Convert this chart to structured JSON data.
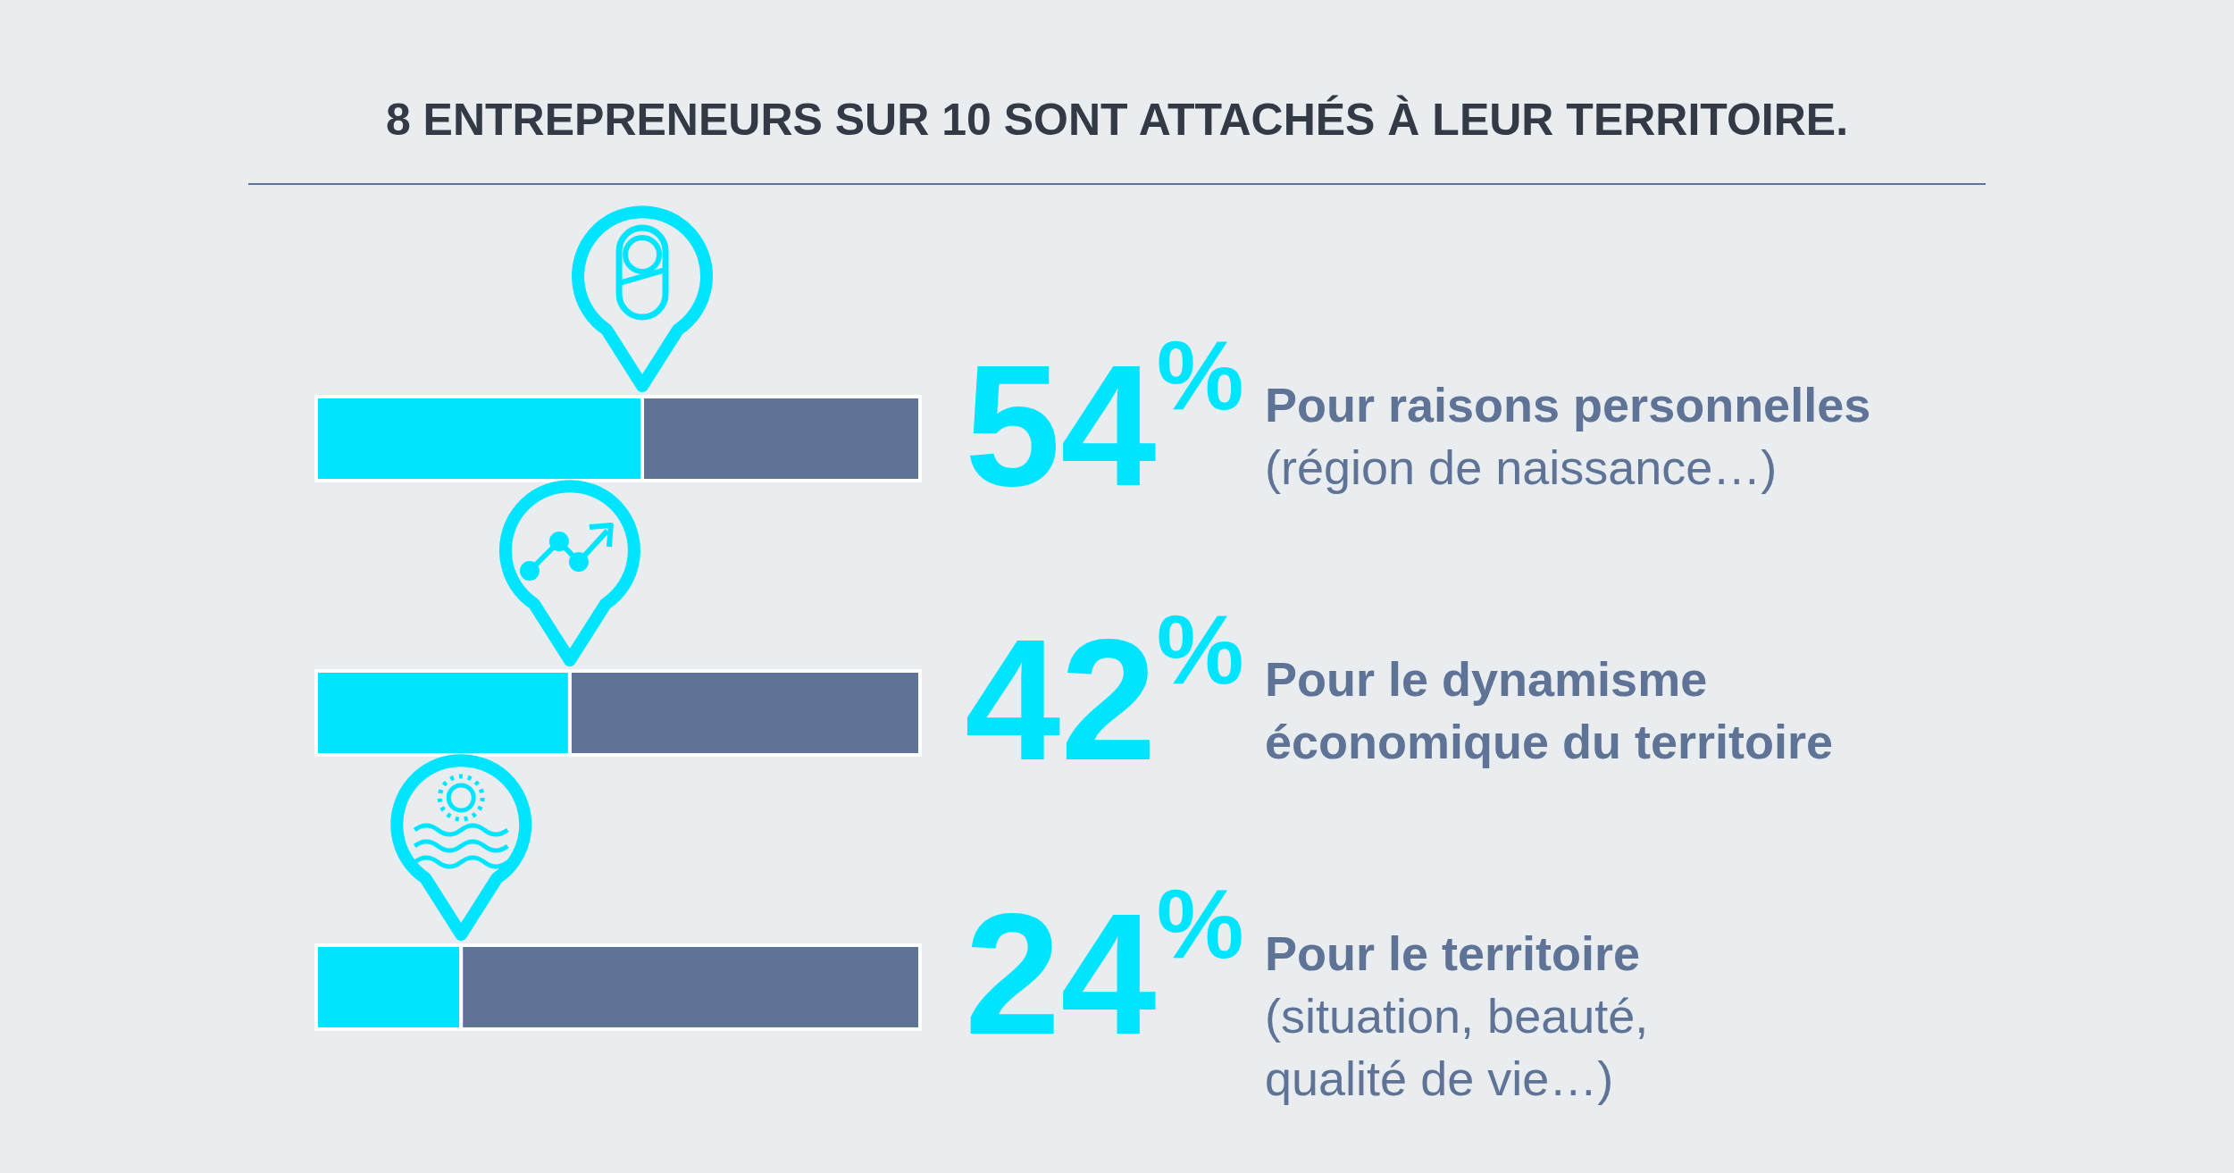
{
  "chart_data": {
    "type": "bar",
    "orientation": "horizontal",
    "stacked": true,
    "title": "8 ENTREPRENEURS SUR 10 SONT ATTACHÉS À LEUR TERRITOIRE.",
    "categories": [
      "Pour raisons personnelles\n(région de naissance…)",
      "Pour le dynamisme\néconomique du territoire",
      "Pour le territoire\n(situation, beauté,\nqualité de vie…)"
    ],
    "series": [
      {
        "color": "#00e5ff",
        "values": [
          54,
          42,
          24
        ],
        "value_labels": [
          "54$^{%}$",
          "42$^{%}$",
          "24$^{%}$"
        ]
      },
      {
        "color": "#5f7396",
        "values": [
          46,
          58,
          76
        ]
      }
    ],
    "legend": false
  }
}
